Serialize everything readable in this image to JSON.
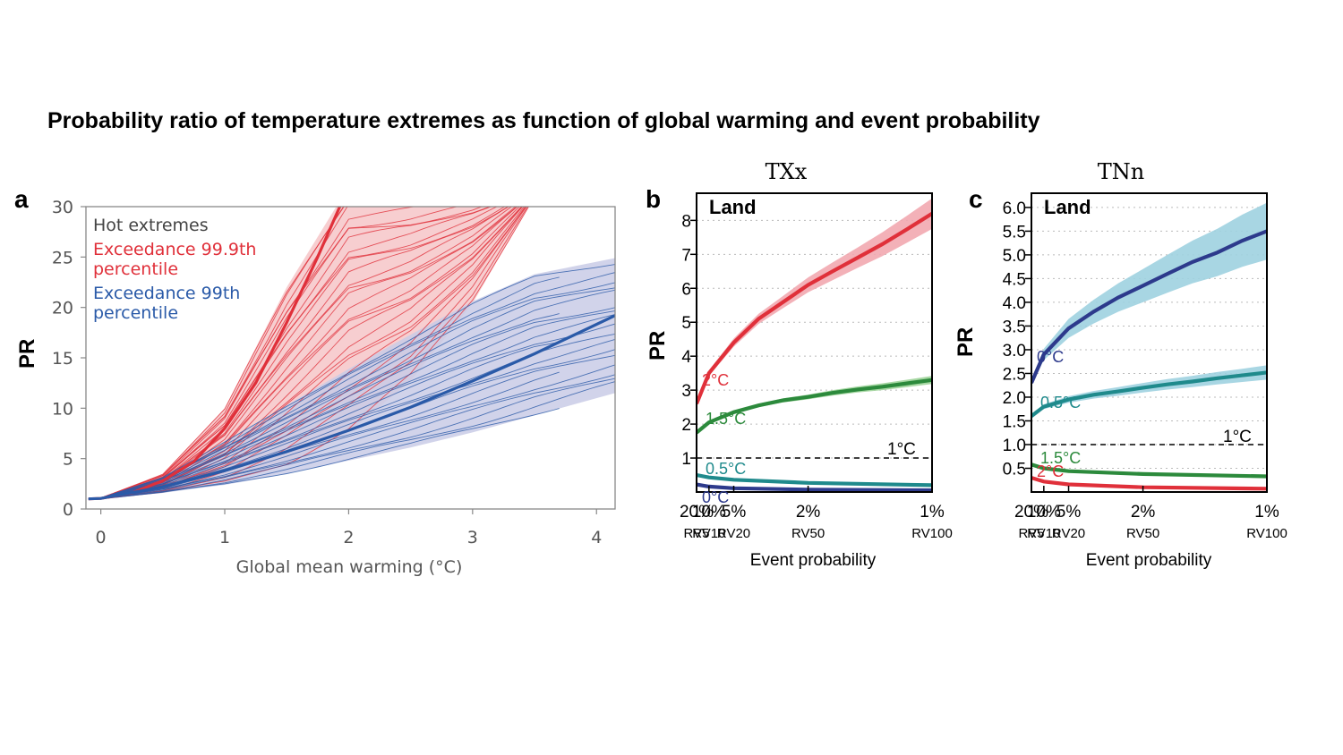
{
  "title": "Probability ratio of temperature extremes as function of global warming and event probability",
  "colors": {
    "red": "#e0303a",
    "red_band": "#f6c5c8",
    "blue": "#2a5aa8",
    "blue_band": "#c9cbe6",
    "green": "#2c8a3c",
    "teal": "#1f8a8c",
    "navy": "#2d3a8c",
    "cyan_band": "#9fd2e0"
  },
  "chart_data": [
    {
      "type": "line",
      "panel": "a",
      "xlabel": "Global mean warming (°C)",
      "ylabel": "PR",
      "xlim": [
        -0.12,
        4.15
      ],
      "ylim": [
        0,
        30
      ],
      "xticks": [
        "0",
        "1",
        "2",
        "3",
        "4"
      ],
      "yticks": [
        "0",
        "5",
        "10",
        "15",
        "20",
        "25",
        "30"
      ],
      "legend_title": "Hot extremes",
      "legend": [
        {
          "label": "Exceedance 99.9th percentile",
          "lines": [
            "Exceedance 99.9th",
            "percentile"
          ],
          "color": "#e0303a"
        },
        {
          "label": "Exceedance 99th percentile",
          "lines": [
            "Exceedance 99th",
            "percentile"
          ],
          "color": "#2a5aa8"
        }
      ],
      "series": [
        {
          "name": "Exceedance 99.9th percentile",
          "x": [
            -0.1,
            0,
            0.25,
            0.5,
            0.75,
            1,
            1.25,
            1.5,
            1.75,
            2.0
          ],
          "y": [
            1,
            1.05,
            1.6,
            2.8,
            4.7,
            8,
            12.5,
            18.5,
            25,
            32
          ]
        },
        {
          "name": "Exceedance 99th percentile",
          "x": [
            -0.1,
            0,
            0.5,
            1,
            1.5,
            2,
            2.5,
            3,
            3.5,
            4.15
          ],
          "y": [
            1,
            1.05,
            2.2,
            3.8,
            5.7,
            7.8,
            10.1,
            12.7,
            15.4,
            19.2
          ]
        }
      ],
      "bands": [
        {
          "name": "Exceedance 99.9th percentile",
          "x": [
            -0.1,
            0,
            0.5,
            1,
            1.5,
            2,
            2.5,
            3,
            3.5
          ],
          "lower": [
            1,
            1,
            1.6,
            2.6,
            4.4,
            7.6,
            12.7,
            20.4,
            31
          ],
          "upper": [
            1,
            1.1,
            3.5,
            10,
            22,
            32,
            32,
            32,
            32
          ]
        },
        {
          "name": "Exceedance 99th percentile",
          "x": [
            -0.1,
            0,
            0.5,
            1,
            1.5,
            2,
            2.5,
            3,
            3.5,
            4.15
          ],
          "lower": [
            1,
            1,
            1.6,
            2.4,
            3.5,
            4.8,
            6.1,
            7.6,
            9.3,
            11.5
          ],
          "upper": [
            1,
            1.1,
            3.2,
            6.7,
            10.3,
            13.9,
            17.3,
            20.6,
            23.3,
            24.9
          ]
        }
      ]
    },
    {
      "type": "line",
      "panel": "b",
      "title": "TXx",
      "ylabel": "PR",
      "xlabel": "Event probability",
      "annotation": "Land",
      "xticks": [
        "20%",
        "10%",
        "5%",
        "2%",
        "1%"
      ],
      "xticks_rv": [
        "RV5",
        "RV10",
        "RV20",
        "RV50",
        "RV100"
      ],
      "xtick_prob": [
        20,
        10,
        5,
        2,
        1
      ],
      "x_scale": "reciprocal",
      "yticks": [
        "1",
        "2",
        "3",
        "4",
        "5",
        "6",
        "7",
        "8"
      ],
      "ylim": [
        0,
        8.8
      ],
      "reference": {
        "y": 1,
        "label": "1°C"
      },
      "series": [
        {
          "name": "2°C",
          "color": "#e0303a",
          "x": [
            20,
            10,
            5,
            3.33,
            2.5,
            2,
            1.67,
            1.43,
            1.25,
            1.11,
            1
          ],
          "y": [
            2.6,
            3.5,
            4.4,
            5.1,
            5.6,
            6.1,
            6.5,
            6.9,
            7.3,
            7.75,
            8.2
          ],
          "band_half": [
            0.05,
            0.08,
            0.12,
            0.15,
            0.18,
            0.22,
            0.26,
            0.3,
            0.35,
            0.4,
            0.45
          ]
        },
        {
          "name": "1.5°C",
          "color": "#2c8a3c",
          "x": [
            20,
            10,
            5,
            3.33,
            2.5,
            2,
            1.67,
            1.43,
            1.25,
            1.11,
            1
          ],
          "y": [
            1.75,
            2.05,
            2.35,
            2.55,
            2.7,
            2.8,
            2.92,
            3.02,
            3.1,
            3.2,
            3.3
          ],
          "band_half": [
            0.02,
            0.03,
            0.04,
            0.05,
            0.06,
            0.07,
            0.08,
            0.09,
            0.1,
            0.11,
            0.12
          ]
        },
        {
          "name": "0.5°C",
          "color": "#1f8a8c",
          "x": [
            20,
            10,
            5,
            2,
            1
          ],
          "y": [
            0.5,
            0.43,
            0.36,
            0.27,
            0.2
          ],
          "band_half": [
            0,
            0,
            0,
            0,
            0
          ]
        },
        {
          "name": "0°C",
          "color": "#2d3a8c",
          "x": [
            20,
            10,
            5,
            2,
            1
          ],
          "y": [
            0.22,
            0.16,
            0.11,
            0.07,
            0.05
          ],
          "band_half": [
            0,
            0,
            0,
            0,
            0
          ]
        }
      ]
    },
    {
      "type": "line",
      "panel": "c",
      "title": "TNn",
      "ylabel": "PR",
      "xlabel": "Event probability",
      "annotation": "Land",
      "xticks": [
        "20%",
        "10%",
        "5%",
        "2%",
        "1%"
      ],
      "xticks_rv": [
        "RV5",
        "RV10",
        "RV20",
        "RV50",
        "RV100"
      ],
      "xtick_prob": [
        20,
        10,
        5,
        2,
        1
      ],
      "x_scale": "reciprocal",
      "yticks": [
        "0.5",
        "1.0",
        "1.5",
        "2.0",
        "2.5",
        "3.0",
        "3.5",
        "4.0",
        "4.5",
        "5.0",
        "5.5",
        "6.0"
      ],
      "ylim": [
        0,
        6.3
      ],
      "reference": {
        "y": 1,
        "label": "1°C"
      },
      "series": [
        {
          "name": "0°C",
          "color": "#2d3a8c",
          "x": [
            20,
            10,
            5,
            3.33,
            2.5,
            2,
            1.67,
            1.43,
            1.25,
            1.11,
            1
          ],
          "y": [
            2.3,
            2.9,
            3.45,
            3.8,
            4.1,
            4.35,
            4.6,
            4.85,
            5.05,
            5.3,
            5.5
          ],
          "band_half": [
            0.05,
            0.12,
            0.2,
            0.25,
            0.3,
            0.35,
            0.4,
            0.45,
            0.5,
            0.55,
            0.6
          ]
        },
        {
          "name": "0.5°C",
          "color": "#1f8a8c",
          "x": [
            20,
            10,
            5,
            3.33,
            2.5,
            2,
            1.67,
            1.43,
            1.25,
            1.11,
            1
          ],
          "y": [
            1.6,
            1.8,
            1.95,
            2.05,
            2.12,
            2.2,
            2.27,
            2.33,
            2.4,
            2.46,
            2.52
          ],
          "band_half": [
            0.02,
            0.05,
            0.07,
            0.08,
            0.09,
            0.1,
            0.11,
            0.12,
            0.13,
            0.14,
            0.15
          ]
        },
        {
          "name": "1.5°C",
          "color": "#2c8a3c",
          "x": [
            20,
            10,
            5,
            2,
            1
          ],
          "y": [
            0.58,
            0.5,
            0.44,
            0.38,
            0.33
          ],
          "band_half": [
            0,
            0,
            0,
            0,
            0
          ]
        },
        {
          "name": "2°C",
          "color": "#e0303a",
          "x": [
            20,
            10,
            5,
            2,
            1
          ],
          "y": [
            0.3,
            0.22,
            0.16,
            0.1,
            0.07
          ],
          "band_half": [
            0,
            0,
            0,
            0,
            0
          ]
        }
      ]
    }
  ]
}
